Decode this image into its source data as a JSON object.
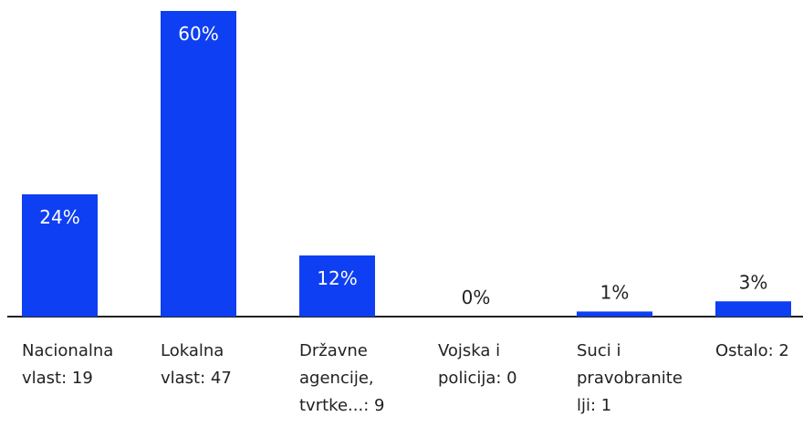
{
  "chart_data": {
    "type": "bar",
    "categories": [
      "Nacionalna vlast: 19",
      "Lokalna vlast: 47",
      "Državne agencije, tvrtke...: 9",
      "Vojska i policija: 0",
      "Suci i pravobranitelji: 1",
      "Ostalo: 2"
    ],
    "values": [
      24,
      60,
      12,
      0,
      1,
      3
    ],
    "value_labels": [
      "24%",
      "60%",
      "12%",
      "0%",
      "1%",
      "3%"
    ],
    "color": "#0f3ff2"
  }
}
